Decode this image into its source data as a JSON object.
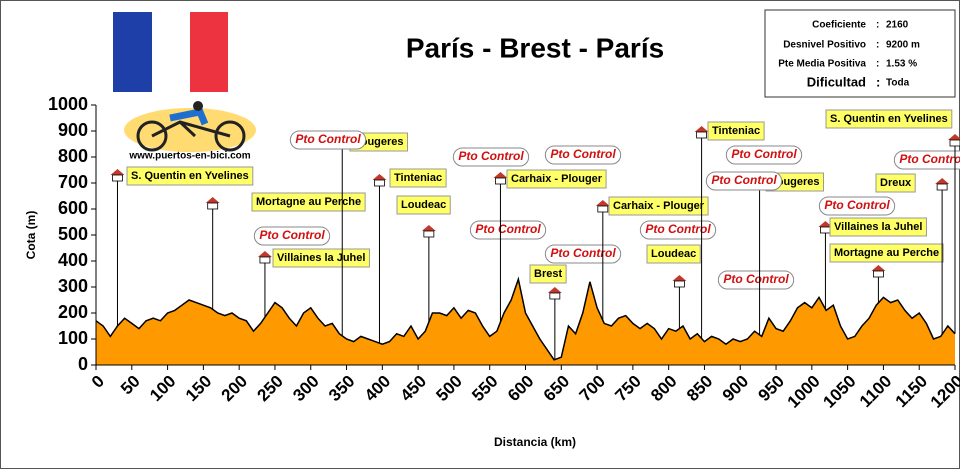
{
  "chart_data": {
    "type": "area",
    "title": "París - Brest - París",
    "website": "www.puertos-en-bici.com",
    "xlabel": "Distancia (km)",
    "ylabel": "Cota (m)",
    "color": "#ff9900",
    "xlim": [
      0,
      1200
    ],
    "ylim": [
      0,
      1000
    ],
    "xticks": [
      0,
      50,
      100,
      150,
      200,
      250,
      300,
      350,
      400,
      450,
      500,
      550,
      600,
      650,
      700,
      750,
      800,
      850,
      900,
      950,
      1000,
      1050,
      1100,
      1150,
      1200
    ],
    "yticks": [
      0,
      100,
      200,
      300,
      400,
      500,
      600,
      700,
      800,
      900,
      1000
    ],
    "x": [
      0,
      10,
      20,
      30,
      40,
      50,
      60,
      70,
      80,
      90,
      100,
      110,
      120,
      130,
      140,
      150,
      160,
      170,
      180,
      190,
      200,
      210,
      220,
      230,
      240,
      250,
      260,
      270,
      280,
      290,
      300,
      310,
      320,
      330,
      340,
      350,
      360,
      370,
      380,
      390,
      400,
      410,
      420,
      430,
      440,
      450,
      460,
      470,
      480,
      490,
      500,
      510,
      520,
      530,
      540,
      550,
      560,
      570,
      580,
      590,
      600,
      610,
      620,
      630,
      640,
      650,
      660,
      670,
      680,
      690,
      700,
      710,
      720,
      730,
      740,
      750,
      760,
      770,
      780,
      790,
      800,
      810,
      820,
      830,
      840,
      850,
      860,
      870,
      880,
      890,
      900,
      910,
      920,
      930,
      940,
      950,
      960,
      970,
      980,
      990,
      1000,
      1010,
      1020,
      1030,
      1040,
      1050,
      1060,
      1070,
      1080,
      1090,
      1100,
      1110,
      1120,
      1130,
      1140,
      1150,
      1160,
      1170,
      1180,
      1190,
      1200
    ],
    "values": [
      170,
      150,
      110,
      150,
      180,
      160,
      140,
      170,
      180,
      170,
      200,
      210,
      230,
      250,
      240,
      230,
      220,
      200,
      190,
      200,
      180,
      170,
      130,
      160,
      200,
      240,
      220,
      180,
      150,
      200,
      220,
      180,
      150,
      160,
      120,
      100,
      90,
      110,
      100,
      90,
      80,
      90,
      120,
      110,
      150,
      100,
      130,
      200,
      200,
      190,
      220,
      180,
      210,
      200,
      150,
      110,
      130,
      200,
      250,
      330,
      200,
      150,
      100,
      60,
      20,
      30,
      150,
      120,
      200,
      320,
      220,
      160,
      150,
      180,
      190,
      160,
      140,
      160,
      140,
      100,
      140,
      130,
      150,
      100,
      120,
      90,
      110,
      100,
      80,
      100,
      90,
      100,
      130,
      110,
      180,
      140,
      130,
      170,
      220,
      240,
      220,
      260,
      210,
      230,
      150,
      100,
      110,
      150,
      180,
      230,
      260,
      240,
      250,
      210,
      180,
      200,
      160,
      100,
      110,
      150,
      120
    ],
    "separator": ":",
    "info": [
      {
        "label": "Coeficiente",
        "value": "2160"
      },
      {
        "label": "Desnivel Positivo",
        "value": "9200 m"
      },
      {
        "label": "Pte Media Positiva",
        "value": "1.53 %"
      },
      {
        "label": "Dificultad",
        "value": "Toda"
      }
    ],
    "annotations": [
      {
        "label": "S. Quentin en Yvelines",
        "x": 30
      },
      {
        "label": "Mortagne au Perche",
        "x": 163
      },
      {
        "label": "Villaines la Juhel",
        "x": 236,
        "tag": "Pto Control"
      },
      {
        "label": "Fougeres",
        "x": 344,
        "tag": "Pto Control"
      },
      {
        "label": "Tinteniac",
        "x": 396,
        "tag": "Pto Control"
      },
      {
        "label": "Loudeac",
        "x": 465,
        "tag": "Pto Control"
      },
      {
        "label": "Carhaix - Plouger",
        "x": 565,
        "tag": "Pto Control"
      },
      {
        "label": "Brest",
        "x": 641,
        "tag": "Pto Control"
      },
      {
        "label": "Carhaix - Plouger",
        "x": 708,
        "tag": "Pto Control"
      },
      {
        "label": "Loudeac",
        "x": 815,
        "tag": "Pto Control"
      },
      {
        "label": "Tinteniac",
        "x": 846,
        "tag": "Pto Control"
      },
      {
        "label": "Fougeres",
        "x": 927,
        "tag": "Pto Control"
      },
      {
        "label": "Villaines la Juhel",
        "x": 1019,
        "tag": "Pto Control"
      },
      {
        "label": "Mortagne au Perche",
        "x": 1093
      },
      {
        "label": "Dreux",
        "x": 1182,
        "tag": "Pto Control"
      },
      {
        "label": "S. Quentin en Yvelines",
        "x": 1200
      }
    ]
  }
}
